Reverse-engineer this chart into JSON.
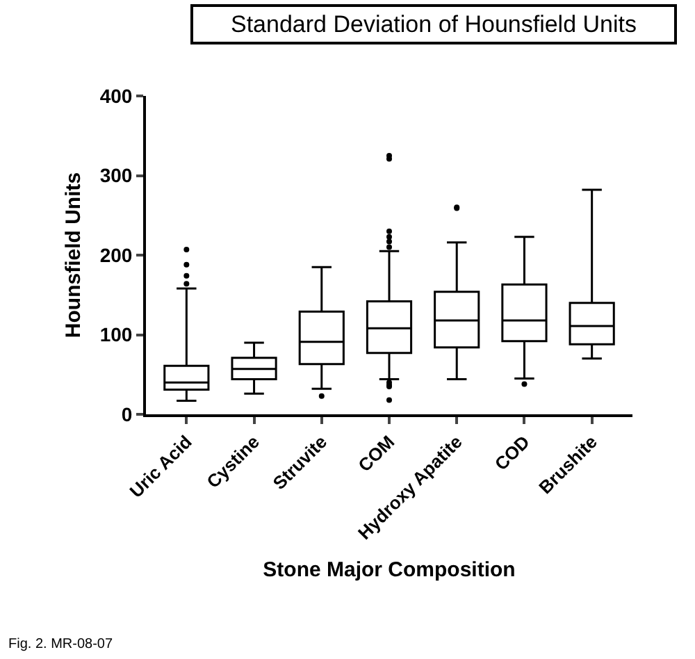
{
  "chart_data": {
    "type": "box",
    "title": "Standard Deviation of Hounsfield Units",
    "xlabel": "Stone Major Composition",
    "ylabel": "Hounsfield Units",
    "categories": [
      "Uric Acid",
      "Cystine",
      "Struvite",
      "COM",
      "Hydroxy Apatite",
      "COD",
      "Brushite"
    ],
    "boxes": [
      {
        "low": 17,
        "q1": 31,
        "median": 40,
        "q3": 61,
        "high": 158,
        "outliers": [
          207,
          188,
          174,
          164
        ]
      },
      {
        "low": 26,
        "q1": 44,
        "median": 57,
        "q3": 71,
        "high": 90
      },
      {
        "low": 32,
        "q1": 63,
        "median": 91,
        "q3": 129,
        "high": 185,
        "outliers": [
          23
        ]
      },
      {
        "low": 44,
        "q1": 77,
        "median": 108,
        "q3": 142,
        "high": 205,
        "outliers": [
          325,
          321,
          230,
          223,
          217,
          210,
          40,
          37,
          35,
          18
        ]
      },
      {
        "low": 44,
        "q1": 84,
        "median": 118,
        "q3": 154,
        "high": 216,
        "outliers": [
          260,
          259
        ]
      },
      {
        "low": 45,
        "q1": 92,
        "median": 118,
        "q3": 163,
        "high": 223,
        "outliers": [
          38
        ]
      },
      {
        "low": 70,
        "q1": 88,
        "median": 111,
        "q3": 140,
        "high": 282
      }
    ],
    "color": "#000000",
    "ylim": [
      0,
      400
    ],
    "yticks": [
      0,
      100,
      200,
      300,
      400
    ],
    "grid": false,
    "annotations": [
      "Fig. 2. MR-08-07"
    ]
  }
}
